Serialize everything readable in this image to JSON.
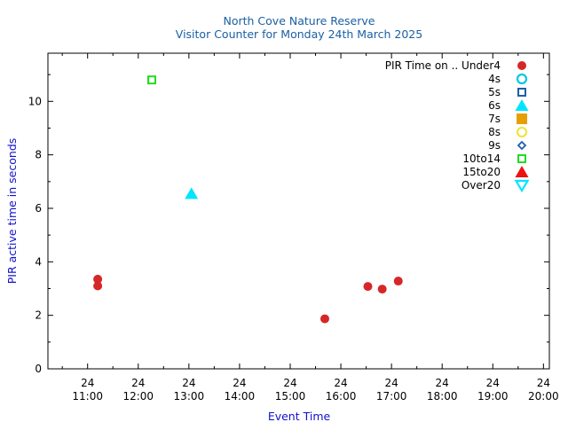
{
  "chart_data": {
    "type": "scatter",
    "title": "North Cove Nature Reserve",
    "subtitle": "Visitor Counter for Monday 24th March 2025",
    "xlabel": "Event Time",
    "ylabel": "PIR active time in seconds",
    "xlim": [
      "10:13",
      "20:07"
    ],
    "ylim": [
      0,
      11.8
    ],
    "grid": false,
    "legend_position": "top-right",
    "x_ticks": [
      {
        "time": "11:00",
        "day": "24"
      },
      {
        "time": "12:00",
        "day": "24"
      },
      {
        "time": "13:00",
        "day": "24"
      },
      {
        "time": "14:00",
        "day": "24"
      },
      {
        "time": "15:00",
        "day": "24"
      },
      {
        "time": "16:00",
        "day": "24"
      },
      {
        "time": "17:00",
        "day": "24"
      },
      {
        "time": "18:00",
        "day": "24"
      },
      {
        "time": "19:00",
        "day": "24"
      },
      {
        "time": "20:00",
        "day": "24"
      }
    ],
    "y_ticks": [
      0,
      2,
      4,
      6,
      8,
      10
    ],
    "series": [
      {
        "name": "PIR Time on .. Under4",
        "marker": "circle-filled",
        "color": "#d62728",
        "points": [
          {
            "x": "11:12",
            "y": 3.35
          },
          {
            "x": "11:12",
            "y": 3.1
          },
          {
            "x": "15:41",
            "y": 1.87
          },
          {
            "x": "16:32",
            "y": 3.08
          },
          {
            "x": "16:49",
            "y": 2.98
          },
          {
            "x": "17:08",
            "y": 3.28
          }
        ]
      },
      {
        "name": "4s",
        "marker": "circle-open",
        "color": "#00c8e6",
        "points": []
      },
      {
        "name": "5s",
        "marker": "square-open",
        "color": "#1f5fa8",
        "points": []
      },
      {
        "name": "6s",
        "marker": "triangle-up-filled",
        "color": "#00e5ff",
        "points": [
          {
            "x": "13:03",
            "y": 6.55
          }
        ]
      },
      {
        "name": "7s",
        "marker": "square-filled",
        "color": "#e69f00",
        "points": []
      },
      {
        "name": "8s",
        "marker": "circle-open",
        "color": "#f0e442",
        "points": []
      },
      {
        "name": "9s",
        "marker": "diamond-open",
        "color": "#1f5fa8",
        "points": []
      },
      {
        "name": "10to14",
        "marker": "square-open",
        "color": "#22dd22",
        "points": [
          {
            "x": "12:16",
            "y": 10.8
          }
        ]
      },
      {
        "name": "15to20",
        "marker": "triangle-up-filled",
        "color": "#ee1111",
        "points": []
      },
      {
        "name": "Over20",
        "marker": "triangle-down-open",
        "color": "#00e5ff",
        "points": []
      }
    ]
  },
  "colors": {
    "title": "#1b5fa3",
    "axis_label": "#1111cc",
    "axis": "#000000"
  }
}
